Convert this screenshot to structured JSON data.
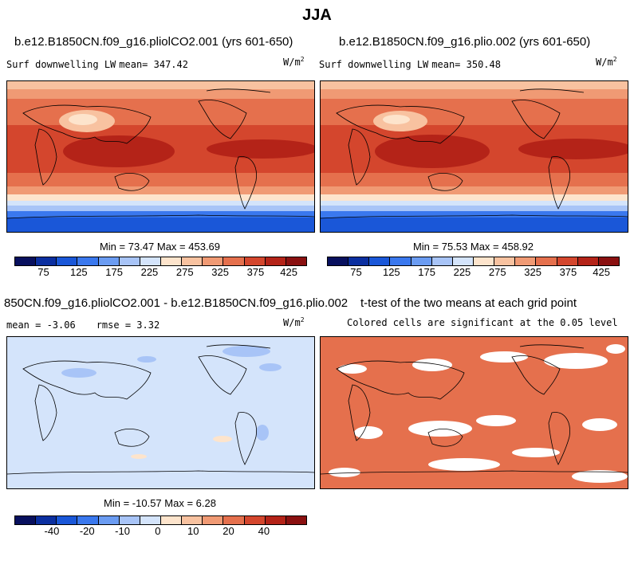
{
  "figure": {
    "title": "JJA"
  },
  "panels": {
    "left_top": {
      "case": "b.e12.B1850CN.f09_g16.pliolCO2.001 (yrs 601-650)",
      "variable": "Surf downwelling LW",
      "mean_text": "mean= 347.42",
      "units": "W/m",
      "units_sup": "2",
      "minmax": "Min =  73.47 Max = 453.69"
    },
    "right_top": {
      "case": "b.e12.B1850CN.f09_g16.plio.002 (yrs 601-650)",
      "variable": "Surf downwelling LW",
      "mean_text": "mean= 350.48",
      "units": "W/m",
      "units_sup": "2",
      "minmax": "Min =  75.53 Max = 458.92"
    },
    "left_bottom": {
      "case": "850CN.f09_g16.pliolCO2.001 - b.e12.B1850CN.f09_g16.plio.002",
      "mean_text": "mean =  -3.06",
      "rmse_text": "rmse =   3.32",
      "units": "W/m",
      "units_sup": "2",
      "minmax": "Min = -10.57 Max =   6.28"
    },
    "right_bottom": {
      "case": "t-test of the two means at each grid point",
      "subtitle": "Colored cells are significant at the 0.05 level"
    }
  },
  "colorbars": {
    "absolute": {
      "colors": [
        "#08105e",
        "#0b2fa0",
        "#1a57d8",
        "#3a78ee",
        "#6b9cf2",
        "#a8c4f7",
        "#d4e4fb",
        "#fde4cc",
        "#f8c2a0",
        "#f09a74",
        "#e5704d",
        "#d4462d",
        "#b42318",
        "#8a1010"
      ],
      "labels": [
        "75",
        "125",
        "175",
        "225",
        "275",
        "325",
        "375",
        "425"
      ]
    },
    "difference": {
      "colors": [
        "#08105e",
        "#0b2fa0",
        "#1a57d8",
        "#3a78ee",
        "#6b9cf2",
        "#a8c4f7",
        "#d4e4fb",
        "#fde4cc",
        "#f8c2a0",
        "#f09a74",
        "#e5704d",
        "#d4462d",
        "#b42318",
        "#8a1010"
      ],
      "labels": [
        "-40",
        "-20",
        "-10",
        "0",
        "10",
        "20",
        "40"
      ]
    }
  },
  "chart_data": [
    {
      "type": "heatmap",
      "title": "b.e12.B1850CN.f09_g16.pliolCO2.001 (yrs 601-650)",
      "variable": "Surf downwelling LW",
      "units": "W/m2",
      "mean": 347.42,
      "min": 73.47,
      "max": 453.69,
      "colorbar_ticks": [
        75,
        125,
        175,
        225,
        275,
        325,
        375,
        425
      ]
    },
    {
      "type": "heatmap",
      "title": "b.e12.B1850CN.f09_g16.plio.002 (yrs 601-650)",
      "variable": "Surf downwelling LW",
      "units": "W/m2",
      "mean": 350.48,
      "min": 75.53,
      "max": 458.92,
      "colorbar_ticks": [
        75,
        125,
        175,
        225,
        275,
        325,
        375,
        425
      ]
    },
    {
      "type": "heatmap",
      "title": "850CN.f09_g16.pliolCO2.001 - b.e12.B1850CN.f09_g16.plio.002",
      "units": "W/m2",
      "mean": -3.06,
      "rmse": 3.32,
      "min": -10.57,
      "max": 6.28,
      "colorbar_ticks": [
        -40,
        -20,
        -10,
        0,
        10,
        20,
        40
      ]
    },
    {
      "type": "heatmap",
      "title": "t-test of the two means at each grid point",
      "subtitle": "Colored cells are significant at the 0.05 level"
    }
  ]
}
